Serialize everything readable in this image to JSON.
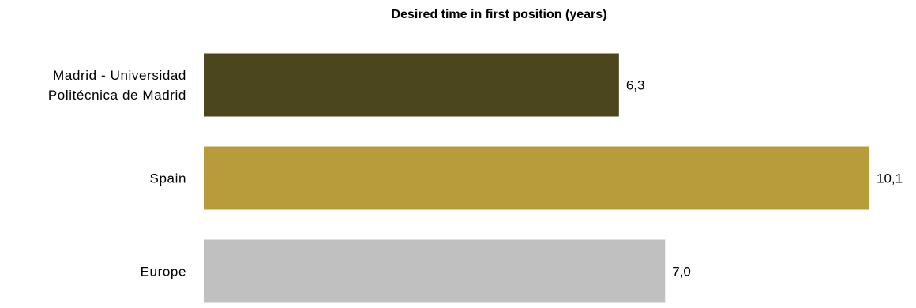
{
  "chart_data": {
    "type": "bar",
    "orientation": "horizontal",
    "title": "Desired time in first position (years)",
    "categories": [
      [
        "Madrid - Universidad",
        "Politécnica de Madrid"
      ],
      [
        "Spain"
      ],
      [
        "Europe"
      ]
    ],
    "values": [
      6.3,
      10.1,
      7.0
    ],
    "value_labels": [
      "6,3",
      "10,1",
      "7,0"
    ],
    "colors": [
      "#4b461d",
      "#b89b3a",
      "#c0c0c0"
    ],
    "xlim": [
      0,
      10.1
    ],
    "grid": false,
    "legend": "none",
    "xlabel": "",
    "ylabel": ""
  }
}
